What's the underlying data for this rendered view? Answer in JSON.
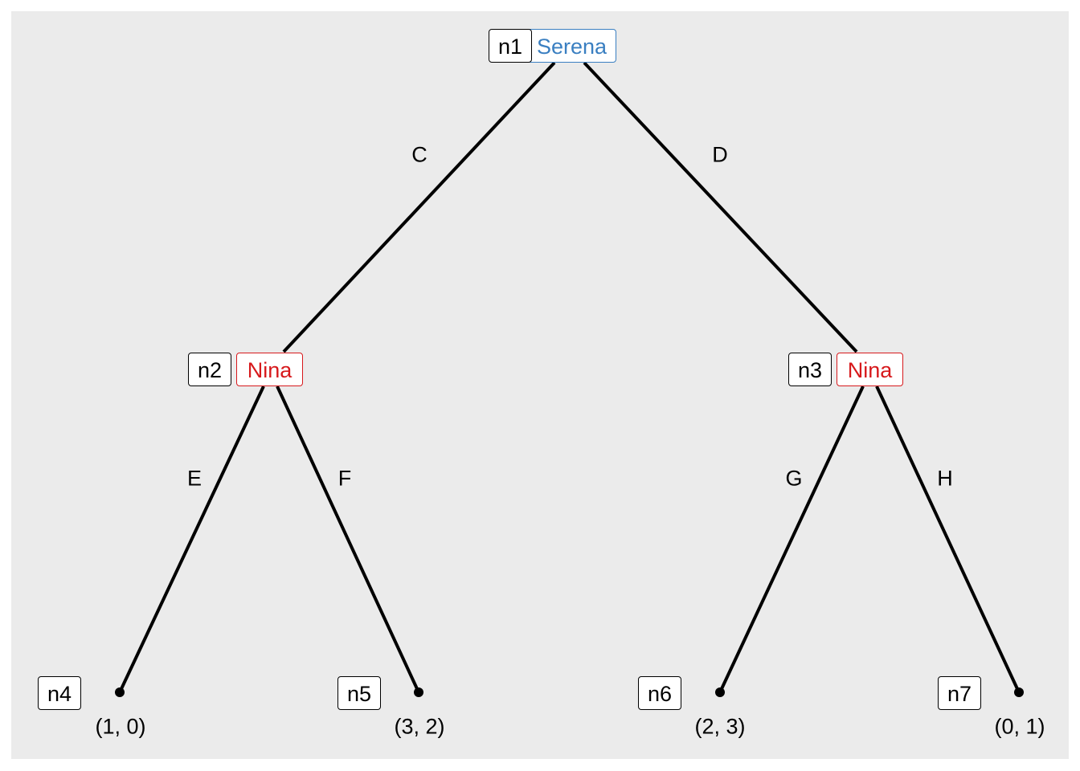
{
  "colors": {
    "background": "#ebebeb",
    "player1": "#3a7fc1",
    "player2": "#d7191c",
    "edge": "#000000"
  },
  "nodes": {
    "n1": {
      "id": "n1",
      "player": "Serena"
    },
    "n2": {
      "id": "n2",
      "player": "Nina"
    },
    "n3": {
      "id": "n3",
      "player": "Nina"
    },
    "n4": {
      "id": "n4",
      "payoff": "(1, 0)"
    },
    "n5": {
      "id": "n5",
      "payoff": "(3, 2)"
    },
    "n6": {
      "id": "n6",
      "payoff": "(2, 3)"
    },
    "n7": {
      "id": "n7",
      "payoff": "(0, 1)"
    }
  },
  "edges": {
    "c": {
      "label": "C",
      "from": "n1",
      "to": "n2"
    },
    "d": {
      "label": "D",
      "from": "n1",
      "to": "n3"
    },
    "e": {
      "label": "E",
      "from": "n2",
      "to": "n4"
    },
    "f": {
      "label": "F",
      "from": "n2",
      "to": "n5"
    },
    "g": {
      "label": "G",
      "from": "n3",
      "to": "n6"
    },
    "h": {
      "label": "H",
      "from": "n3",
      "to": "n7"
    }
  }
}
